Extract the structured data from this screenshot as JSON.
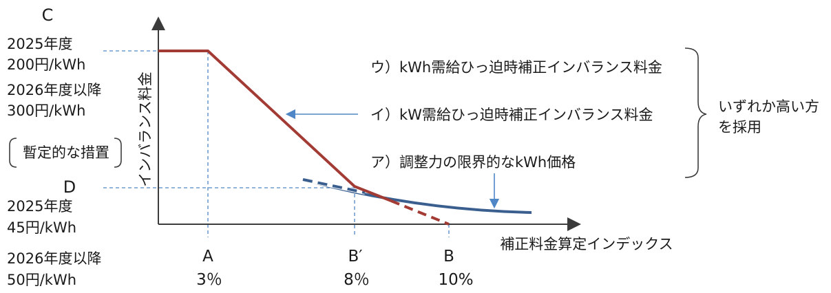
{
  "left_axis": {
    "c_letter": "C",
    "c_line1": "2025年度",
    "c_line2": "200円/kWh",
    "c_line3": "2026年度以降",
    "c_line4": "300円/kWh",
    "bracket_note": "暫定的な措置",
    "d_letter": "D",
    "d_line1": "2025年度",
    "d_line2": "45円/kWh",
    "d_line3": "2026年度以降",
    "d_line4": "50円/kWh"
  },
  "y_axis_label": "インバランス料金",
  "x_axis_label": "補正料金算定インデックス",
  "x_ticks": {
    "a_letter": "A",
    "a_value": "3％",
    "bprime_letter": "B′",
    "bprime_value": "8％",
    "b_letter": "B",
    "b_value": "10%"
  },
  "annotations": {
    "u": "ウ）kWh需給ひっ迫時補正インバランス料金",
    "i": "イ）kW需給ひっ迫時補正インバランス料金",
    "a": "ア）調整力の限界的なkWh価格",
    "brace_note_line1": "いずれか高い方",
    "brace_note_line2": "を採用"
  },
  "colors": {
    "red_line": "#a33b35",
    "blue_line": "#3a5f8f",
    "arrow": "#4f86c6",
    "guide": "#4f86c6",
    "axis": "#3b3b3b"
  }
}
